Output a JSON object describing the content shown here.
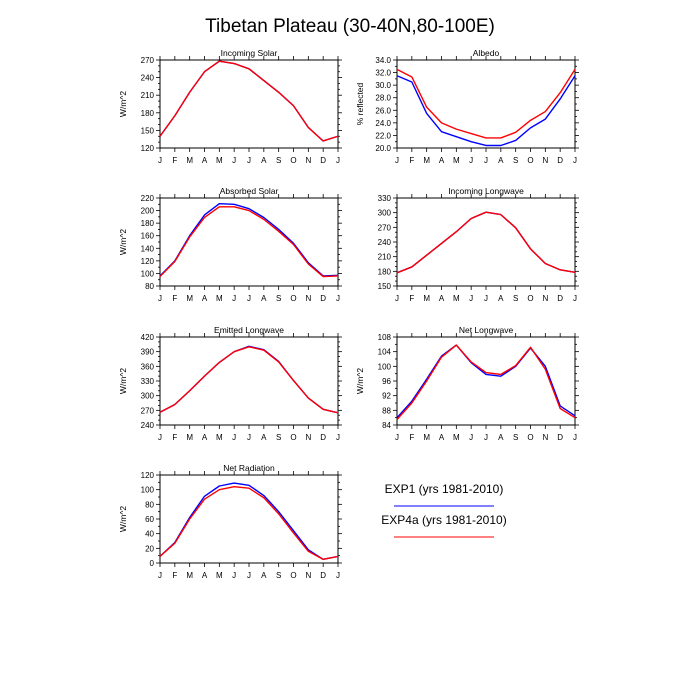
{
  "figure": {
    "title": "Tibetan Plateau (30-40N,80-100E)"
  },
  "colors": {
    "exp1": "#0000ff",
    "exp4a": "#ff0000"
  },
  "legend": [
    {
      "label": "EXP1 (yrs 1981-2010)",
      "color": "#0000ff"
    },
    {
      "label": "EXP4a (yrs 1981-2010)",
      "color": "#ff0000"
    }
  ],
  "chart_data": [
    {
      "type": "line",
      "title": "Incoming Solar",
      "ylabel": "W/m^2",
      "ylim": [
        120,
        270
      ],
      "yticks": [
        120,
        150,
        180,
        210,
        240,
        270
      ],
      "yminor": 10,
      "categories": [
        "J",
        "F",
        "M",
        "A",
        "M",
        "J",
        "J",
        "A",
        "S",
        "O",
        "N",
        "D",
        "J"
      ],
      "series": [
        {
          "color": "#0000ff",
          "values": [
            140,
            175,
            215,
            250,
            268,
            264,
            255,
            235,
            215,
            192,
            155,
            132,
            140
          ]
        },
        {
          "color": "#ff0000",
          "values": [
            140,
            175,
            215,
            250,
            268,
            264,
            255,
            235,
            215,
            192,
            155,
            132,
            140
          ]
        }
      ]
    },
    {
      "type": "line",
      "title": "Albedo",
      "ylabel": "% reflected",
      "ylim": [
        20,
        34
      ],
      "yticks": [
        20.0,
        22.0,
        24.0,
        26.0,
        28.0,
        30.0,
        32.0,
        34.0
      ],
      "yminor": 1,
      "ydecimals": 1,
      "categories": [
        "J",
        "F",
        "M",
        "A",
        "M",
        "J",
        "J",
        "A",
        "S",
        "O",
        "N",
        "D",
        "J"
      ],
      "series": [
        {
          "color": "#0000ff",
          "values": [
            31.5,
            30.5,
            25.5,
            22.6,
            21.8,
            21.0,
            20.4,
            20.4,
            21.2,
            23.2,
            24.6,
            27.8,
            31.5
          ]
        },
        {
          "color": "#ff0000",
          "values": [
            32.5,
            31.3,
            26.5,
            24.0,
            23.0,
            22.3,
            21.6,
            21.6,
            22.5,
            24.4,
            25.8,
            28.8,
            32.5
          ]
        }
      ]
    },
    {
      "type": "line",
      "title": "Absorbed Solar",
      "ylabel": "W/m^2",
      "ylim": [
        80,
        220
      ],
      "yticks": [
        80,
        100,
        120,
        140,
        160,
        180,
        200,
        220
      ],
      "yminor": 10,
      "categories": [
        "J",
        "F",
        "M",
        "A",
        "M",
        "J",
        "J",
        "A",
        "S",
        "O",
        "N",
        "D",
        "J"
      ],
      "series": [
        {
          "color": "#0000ff",
          "values": [
            96,
            120,
            160,
            193,
            211,
            210,
            203,
            189,
            170,
            148,
            117,
            96,
            97
          ]
        },
        {
          "color": "#ff0000",
          "values": [
            95,
            119,
            158,
            189,
            206,
            206,
            200,
            186,
            167,
            146,
            115,
            95,
            96
          ]
        }
      ]
    },
    {
      "type": "line",
      "title": "Incoming Longwave",
      "ylabel": "",
      "ylim": [
        150,
        330
      ],
      "yticks": [
        150,
        180,
        210,
        240,
        270,
        300,
        330
      ],
      "yminor": 10,
      "categories": [
        "J",
        "F",
        "M",
        "A",
        "M",
        "J",
        "J",
        "A",
        "S",
        "O",
        "N",
        "D",
        "J"
      ],
      "series": [
        {
          "color": "#0000ff",
          "values": [
            177,
            189,
            213,
            237,
            261,
            288,
            301,
            296,
            269,
            226,
            196,
            183,
            178
          ]
        },
        {
          "color": "#ff0000",
          "values": [
            177,
            189,
            213,
            237,
            261,
            288,
            301,
            296,
            269,
            226,
            196,
            183,
            178
          ]
        }
      ]
    },
    {
      "type": "line",
      "title": "Emitted Longwave",
      "ylabel": "W/m^2",
      "ylim": [
        240,
        420
      ],
      "yticks": [
        240,
        270,
        300,
        330,
        360,
        390,
        420
      ],
      "yminor": 10,
      "categories": [
        "J",
        "F",
        "M",
        "A",
        "M",
        "J",
        "J",
        "A",
        "S",
        "O",
        "N",
        "D",
        "J"
      ],
      "series": [
        {
          "color": "#0000ff",
          "values": [
            266,
            282,
            310,
            340,
            368,
            390,
            401,
            394,
            370,
            331,
            295,
            272,
            265
          ]
        },
        {
          "color": "#ff0000",
          "values": [
            266,
            282,
            310,
            340,
            368,
            390,
            400,
            393,
            369,
            331,
            295,
            272,
            265
          ]
        }
      ]
    },
    {
      "type": "line",
      "title": "Net Longwave",
      "ylabel": "W/m^2",
      "ylim": [
        84,
        108
      ],
      "yticks": [
        84,
        88,
        92,
        96,
        100,
        104,
        108
      ],
      "yminor": 2,
      "categories": [
        "J",
        "F",
        "M",
        "A",
        "M",
        "J",
        "J",
        "A",
        "S",
        "O",
        "N",
        "D",
        "J"
      ],
      "series": [
        {
          "color": "#0000ff",
          "values": [
            86.0,
            90.5,
            96.5,
            102.8,
            105.8,
            101.0,
            97.8,
            97.3,
            100.0,
            105.0,
            100.0,
            89.2,
            86.5
          ]
        },
        {
          "color": "#ff0000",
          "values": [
            85.5,
            90.0,
            96.0,
            102.5,
            105.8,
            101.2,
            98.3,
            97.8,
            100.2,
            105.2,
            99.2,
            88.5,
            86.0
          ]
        }
      ]
    },
    {
      "type": "line",
      "title": "Net Radiation",
      "ylabel": "W/m^2",
      "ylim": [
        0,
        120
      ],
      "yticks": [
        0,
        20,
        40,
        60,
        80,
        100,
        120
      ],
      "yminor": 10,
      "categories": [
        "J",
        "F",
        "M",
        "A",
        "M",
        "J",
        "J",
        "A",
        "S",
        "O",
        "N",
        "D",
        "J"
      ],
      "series": [
        {
          "color": "#0000ff",
          "values": [
            9,
            28,
            62,
            91,
            105,
            109,
            106,
            92,
            70,
            44,
            18,
            5,
            9
          ]
        },
        {
          "color": "#ff0000",
          "values": [
            9,
            27,
            60,
            87,
            100,
            104,
            102,
            89,
            67,
            41,
            16,
            5,
            9
          ]
        }
      ]
    }
  ]
}
